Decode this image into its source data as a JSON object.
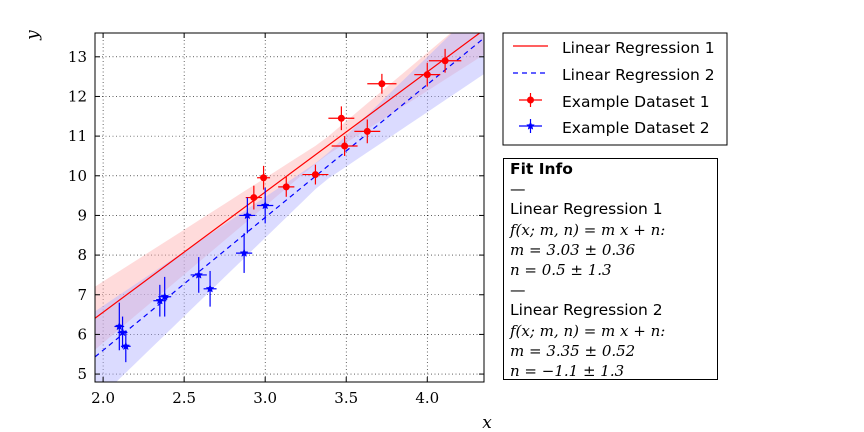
{
  "chart_data": {
    "type": "scatter",
    "xlabel": "x",
    "ylabel": "y",
    "xlim": [
      1.95,
      4.35
    ],
    "ylim": [
      4.8,
      13.6
    ],
    "xticks": [
      "2.0",
      "2.5",
      "3.0",
      "3.5",
      "4.0"
    ],
    "xtick_values": [
      2.0,
      2.5,
      3.0,
      3.5,
      4.0
    ],
    "yticks": [
      "5",
      "6",
      "7",
      "8",
      "9",
      "10",
      "11",
      "12",
      "13"
    ],
    "ytick_values": [
      5,
      6,
      7,
      8,
      9,
      10,
      11,
      12,
      13
    ],
    "grid": true,
    "legend_position": "outside-right-top",
    "series": [
      {
        "name": "Linear Regression 1",
        "kind": "line",
        "color": "#ff0000",
        "dash": "solid",
        "slope": 3.03,
        "intercept": 0.5,
        "band_color": "#ffb0b0"
      },
      {
        "name": "Linear Regression 2",
        "kind": "line",
        "color": "#0000ff",
        "dash": "dashed",
        "slope": 3.35,
        "intercept": -1.1,
        "band_color": "#b0b0ff"
      },
      {
        "name": "Example Dataset 1",
        "kind": "errorbar",
        "color": "#ff0000",
        "marker": "circle",
        "points": [
          {
            "x": 2.93,
            "y": 9.45,
            "xerr": 0.05,
            "yerr": 0.3
          },
          {
            "x": 2.99,
            "y": 9.95,
            "xerr": 0.04,
            "yerr": 0.3
          },
          {
            "x": 3.13,
            "y": 9.72,
            "xerr": 0.05,
            "yerr": 0.25
          },
          {
            "x": 3.31,
            "y": 10.03,
            "xerr": 0.08,
            "yerr": 0.25
          },
          {
            "x": 3.47,
            "y": 11.45,
            "xerr": 0.08,
            "yerr": 0.3
          },
          {
            "x": 3.49,
            "y": 10.75,
            "xerr": 0.08,
            "yerr": 0.25
          },
          {
            "x": 3.63,
            "y": 11.12,
            "xerr": 0.08,
            "yerr": 0.3
          },
          {
            "x": 3.72,
            "y": 12.32,
            "xerr": 0.09,
            "yerr": 0.25
          },
          {
            "x": 4.0,
            "y": 12.55,
            "xerr": 0.08,
            "yerr": 0.3
          },
          {
            "x": 4.11,
            "y": 12.9,
            "xerr": 0.1,
            "yerr": 0.3
          }
        ]
      },
      {
        "name": "Example Dataset 2",
        "kind": "errorbar",
        "color": "#0000ff",
        "marker": "star",
        "points": [
          {
            "x": 2.1,
            "y": 6.2,
            "xerr": 0.03,
            "yerr": 0.6
          },
          {
            "x": 2.12,
            "y": 6.05,
            "xerr": 0.03,
            "yerr": 0.4
          },
          {
            "x": 2.14,
            "y": 5.7,
            "xerr": 0.03,
            "yerr": 0.4
          },
          {
            "x": 2.35,
            "y": 6.85,
            "xerr": 0.04,
            "yerr": 0.4
          },
          {
            "x": 2.38,
            "y": 6.95,
            "xerr": 0.04,
            "yerr": 0.5
          },
          {
            "x": 2.59,
            "y": 7.5,
            "xerr": 0.05,
            "yerr": 0.45
          },
          {
            "x": 2.66,
            "y": 7.15,
            "xerr": 0.04,
            "yerr": 0.45
          },
          {
            "x": 2.87,
            "y": 8.05,
            "xerr": 0.05,
            "yerr": 0.5
          },
          {
            "x": 2.89,
            "y": 9.0,
            "xerr": 0.05,
            "yerr": 0.45
          },
          {
            "x": 3.0,
            "y": 9.25,
            "xerr": 0.05,
            "yerr": 0.45
          }
        ]
      }
    ]
  },
  "fit_info": {
    "title": "Fit Info",
    "sep1": "—",
    "model1_name": "Linear Regression 1",
    "model1_formula": "f(x; m, n) = m x + n:",
    "model1_m": "m = 3.03 ± 0.36",
    "model1_n": "n = 0.5 ± 1.3",
    "sep2": "—",
    "model2_name": "Linear Regression 2",
    "model2_formula": "f(x; m, n) = m x + n:",
    "model2_m": "m = 3.35 ± 0.52",
    "model2_n": "n = −1.1 ± 1.3"
  }
}
